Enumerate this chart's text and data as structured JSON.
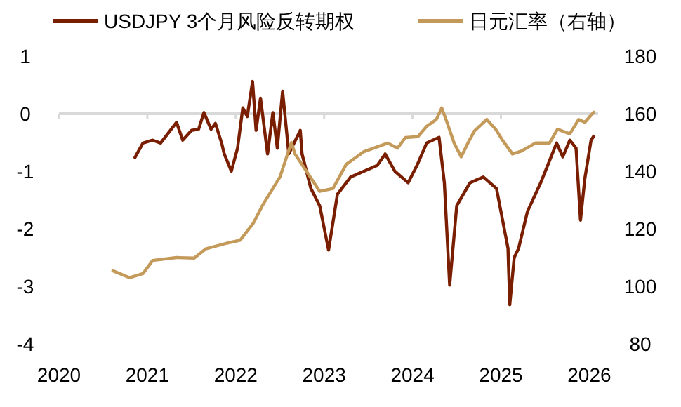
{
  "chart_data": {
    "type": "line",
    "legend": "top",
    "grid": false,
    "xlim": [
      2020,
      2026.1
    ],
    "xticks": [
      2020,
      2021,
      2022,
      2023,
      2024,
      2025,
      2026
    ],
    "ylim": [
      -4,
      1
    ],
    "yticks": [
      -4,
      -3,
      -2,
      -1,
      0,
      1
    ],
    "y2lim": [
      80,
      180
    ],
    "y2ticks": [
      80,
      100,
      120,
      140,
      160,
      180
    ],
    "ref_lines": [
      {
        "axis": "y",
        "value": 0,
        "color": "#d9d9d9"
      }
    ],
    "series": [
      {
        "name": "USDJPY 3个月风险反转期权",
        "color": "#7a1e02",
        "x": [
          2020.86,
          2020.95,
          2021.06,
          2021.15,
          2021.27,
          2021.33,
          2021.4,
          2021.5,
          2021.58,
          2021.64,
          2021.72,
          2021.77,
          2021.84,
          2021.87,
          2021.95,
          2022.02,
          2022.08,
          2022.13,
          2022.19,
          2022.23,
          2022.28,
          2022.36,
          2022.42,
          2022.47,
          2022.53,
          2022.6,
          2022.73,
          2022.75,
          2022.85,
          2022.95,
          2023.05,
          2023.15,
          2023.3,
          2023.45,
          2023.6,
          2023.69,
          2023.8,
          2023.95,
          2024.05,
          2024.16,
          2024.3,
          2024.36,
          2024.42,
          2024.5,
          2024.65,
          2024.8,
          2024.95,
          2025.08,
          2025.1,
          2025.15,
          2025.2,
          2025.3,
          2025.45,
          2025.63,
          2025.7,
          2025.78,
          2025.85,
          2025.9,
          2025.95,
          2026.02,
          2026.05
        ],
        "values": [
          -0.76,
          -0.51,
          -0.46,
          -0.51,
          -0.27,
          -0.15,
          -0.46,
          -0.29,
          -0.27,
          0.02,
          -0.27,
          -0.17,
          -0.51,
          -0.7,
          -1.0,
          -0.6,
          0.1,
          -0.05,
          0.56,
          -0.29,
          0.27,
          -0.7,
          0.02,
          -0.6,
          0.39,
          -0.7,
          -0.29,
          -0.7,
          -1.3,
          -1.6,
          -2.37,
          -1.4,
          -1.1,
          -1.0,
          -0.9,
          -0.7,
          -1.0,
          -1.2,
          -0.9,
          -0.51,
          -0.41,
          -1.2,
          -2.98,
          -1.6,
          -1.2,
          -1.1,
          -1.3,
          -2.34,
          -3.32,
          -2.5,
          -2.34,
          -1.7,
          -1.2,
          -0.51,
          -0.75,
          -0.46,
          -0.6,
          -1.85,
          -1.12,
          -0.46,
          -0.39
        ]
      },
      {
        "name": "日元汇率（右轴）",
        "axis": "y2",
        "color": "#c49a5a",
        "x": [
          2020.61,
          2020.8,
          2020.95,
          2021.06,
          2021.33,
          2021.53,
          2021.66,
          2021.9,
          2022.05,
          2022.2,
          2022.3,
          2022.4,
          2022.5,
          2022.63,
          2022.67,
          2022.8,
          2022.95,
          2023.1,
          2023.25,
          2023.45,
          2023.72,
          2023.83,
          2023.92,
          2024.06,
          2024.16,
          2024.27,
          2024.33,
          2024.39,
          2024.47,
          2024.55,
          2024.63,
          2024.7,
          2024.84,
          2024.94,
          2025.02,
          2025.13,
          2025.23,
          2025.39,
          2025.55,
          2025.64,
          2025.78,
          2025.88,
          2025.95,
          2026.05
        ],
        "values": [
          105.4,
          103,
          104.4,
          109,
          110,
          109.8,
          113,
          115,
          116,
          122,
          128,
          133,
          138,
          150,
          146,
          140,
          133,
          134,
          142.4,
          146.8,
          149.8,
          148,
          151.7,
          152,
          155.6,
          158,
          162,
          157,
          149.8,
          145,
          150,
          154,
          158,
          154.6,
          150.7,
          146,
          147,
          149.8,
          149.8,
          154.6,
          153,
          158,
          157,
          160.5
        ]
      }
    ]
  }
}
